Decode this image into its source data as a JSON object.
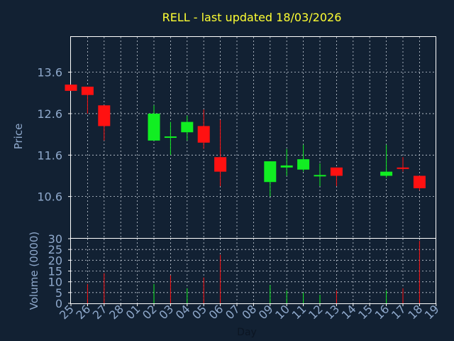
{
  "chart_data": [
    {
      "type": "candlestick",
      "title": "RELL - last updated 18/03/2026",
      "ylabel": "Price",
      "xlabel": "Day",
      "yticks": [
        "13.6",
        "12.6",
        "11.6",
        "10.6"
      ],
      "ylim": [
        9.6,
        14.45
      ],
      "x_tick_labels": [
        "25",
        "26",
        "27",
        "28",
        "01",
        "02",
        "03",
        "04",
        "05",
        "06",
        "07",
        "08",
        "09",
        "10",
        "11",
        "12",
        "13",
        "14",
        "15",
        "16",
        "17",
        "18",
        "19"
      ],
      "grid": true,
      "candles": [
        {
          "day": "25",
          "open": 13.3,
          "close": 13.15,
          "high": 13.3,
          "low": 13.15
        },
        {
          "day": "26",
          "open": 13.25,
          "close": 13.05,
          "high": 13.25,
          "low": 12.6
        },
        {
          "day": "27",
          "open": 12.8,
          "close": 12.3,
          "high": 12.8,
          "low": 11.95
        },
        {
          "day": "02",
          "open": 11.95,
          "close": 12.6,
          "high": 12.8,
          "low": 11.95
        },
        {
          "day": "03",
          "open": 12.05,
          "close": 12.05,
          "high": 12.4,
          "low": 11.6
        },
        {
          "day": "04",
          "open": 12.15,
          "close": 12.4,
          "high": 12.55,
          "low": 11.95
        },
        {
          "day": "05",
          "open": 12.3,
          "close": 11.9,
          "high": 12.7,
          "low": 11.75
        },
        {
          "day": "06",
          "open": 11.55,
          "close": 11.2,
          "high": 12.45,
          "low": 10.85
        },
        {
          "day": "09",
          "open": 10.95,
          "close": 11.45,
          "high": 11.45,
          "low": 10.6
        },
        {
          "day": "10",
          "open": 11.3,
          "close": 11.35,
          "high": 11.75,
          "low": 11.1
        },
        {
          "day": "11",
          "open": 11.25,
          "close": 11.5,
          "high": 11.85,
          "low": 11.2
        },
        {
          "day": "12",
          "open": 11.1,
          "close": 11.12,
          "high": 11.4,
          "low": 10.85
        },
        {
          "day": "13",
          "open": 11.3,
          "close": 11.1,
          "high": 11.3,
          "low": 10.85
        },
        {
          "day": "16",
          "open": 11.1,
          "close": 11.2,
          "high": 11.85,
          "low": 11.05
        },
        {
          "day": "17",
          "open": 11.3,
          "close": 11.28,
          "high": 11.55,
          "low": 11.2
        },
        {
          "day": "18",
          "open": 11.1,
          "close": 10.8,
          "high": 11.1,
          "low": 10.75
        }
      ]
    },
    {
      "type": "bar",
      "ylabel": "Volume (0000)",
      "yticks": [
        "30",
        "25",
        "20",
        "15",
        "10",
        "5",
        "0"
      ],
      "ylim": [
        0,
        30
      ],
      "bars": [
        {
          "day": "26",
          "value": 9,
          "direction": "down"
        },
        {
          "day": "27",
          "value": 14,
          "direction": "down"
        },
        {
          "day": "02",
          "value": 9,
          "direction": "up"
        },
        {
          "day": "03",
          "value": 13,
          "direction": "down"
        },
        {
          "day": "04",
          "value": 7,
          "direction": "up"
        },
        {
          "day": "05",
          "value": 12,
          "direction": "down"
        },
        {
          "day": "06",
          "value": 22.5,
          "direction": "down"
        },
        {
          "day": "09",
          "value": 8.5,
          "direction": "up"
        },
        {
          "day": "10",
          "value": 6,
          "direction": "up"
        },
        {
          "day": "11",
          "value": 5,
          "direction": "up"
        },
        {
          "day": "12",
          "value": 4,
          "direction": "up"
        },
        {
          "day": "13",
          "value": 6,
          "direction": "down"
        },
        {
          "day": "16",
          "value": 6,
          "direction": "up"
        },
        {
          "day": "17",
          "value": 7,
          "direction": "down"
        },
        {
          "day": "18",
          "value": 29,
          "direction": "down"
        }
      ]
    }
  ],
  "colors": {
    "background": "#122133",
    "up": "#11ee22",
    "down": "#ff1111",
    "frame": "#ffffff",
    "text": "#8fa9cc",
    "title": "#ffff33"
  }
}
